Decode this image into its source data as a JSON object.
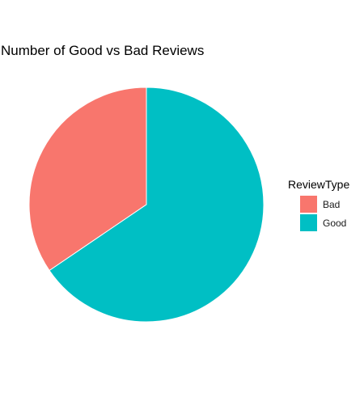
{
  "chart_data": {
    "type": "pie",
    "title": "Number of Good vs Bad Reviews",
    "legend": {
      "title": "ReviewType",
      "placement": "right"
    },
    "slices": [
      {
        "label": "Bad",
        "value": 34.5,
        "color": "#F8766D"
      },
      {
        "label": "Good",
        "value": 65.5,
        "color": "#00BFC4"
      }
    ],
    "start_angle_deg": 0,
    "direction": "counterclockwise"
  }
}
